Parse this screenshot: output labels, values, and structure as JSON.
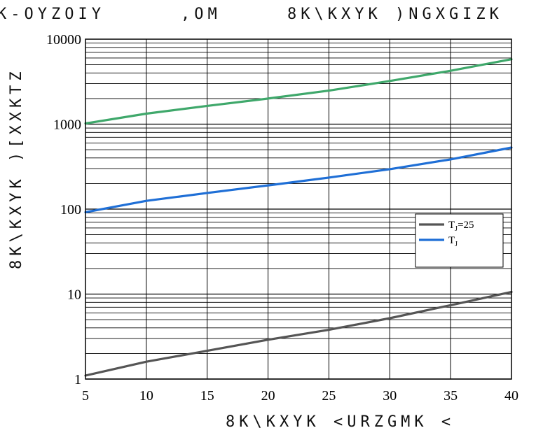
{
  "header": {
    "left_text": "K-OYZOIY",
    "middle_text": ",OM",
    "right_text": "8K\\KXYK )NGXGIZK"
  },
  "chart_data": {
    "type": "line",
    "title": "",
    "xlabel": "8K\\KXYK <URZGMK <",
    "ylabel": "8K\\KXYK )[XXKTZ",
    "x_ticks": [
      5,
      10,
      15,
      20,
      25,
      30,
      35,
      40
    ],
    "y_ticks": [
      "1",
      "10",
      "100",
      "1000",
      "10000"
    ],
    "xlim": [
      5,
      40
    ],
    "ylim": [
      1,
      10000
    ],
    "y_scale": "log",
    "grid": true,
    "legend_position": "right",
    "series": [
      {
        "name": "TJ=25",
        "color": "#555555",
        "x": [
          5,
          10,
          15,
          20,
          25,
          30,
          35,
          40
        ],
        "y": [
          1.1,
          1.6,
          2.15,
          2.9,
          3.8,
          5.2,
          7.4,
          10.6
        ]
      },
      {
        "name": "TJ",
        "color": "#1f6fd6",
        "x": [
          5,
          10,
          15,
          20,
          25,
          30,
          35,
          40
        ],
        "y": [
          92,
          125,
          155,
          190,
          235,
          295,
          385,
          530
        ]
      },
      {
        "color": "#3fa86b",
        "x": [
          5,
          10,
          15,
          20,
          25,
          30,
          35,
          40
        ],
        "y": [
          1020,
          1330,
          1640,
          2000,
          2480,
          3220,
          4250,
          5800
        ]
      }
    ],
    "legend": [
      {
        "label": "T",
        "sub": "J",
        "suffix": "=25",
        "color": "#555555"
      },
      {
        "label": "T",
        "sub": "J",
        "suffix": "",
        "color": "#1f6fd6"
      }
    ]
  }
}
